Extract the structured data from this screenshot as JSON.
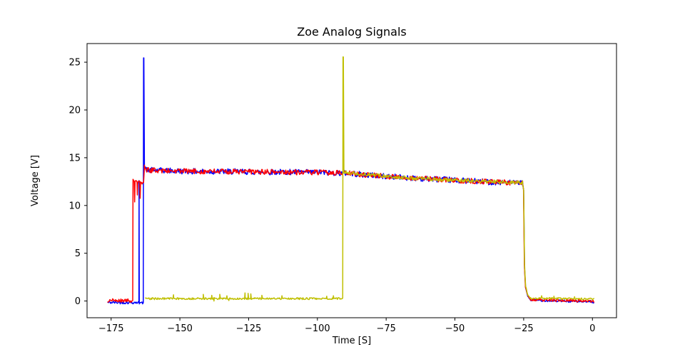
{
  "page": {
    "background": "#ffffff"
  },
  "chart_data": {
    "type": "line",
    "title": "Zoe Analog Signals",
    "xlabel": "Time [S]",
    "ylabel": "Voltage [V]",
    "xlim": [
      -183.75,
      8.75
    ],
    "ylim": [
      -1.75,
      26.95
    ],
    "grid": false,
    "legend": "none",
    "axis_color": "#000000",
    "xticks": [
      {
        "value": -175,
        "label": "−175"
      },
      {
        "value": -150,
        "label": "−150"
      },
      {
        "value": -125,
        "label": "−125"
      },
      {
        "value": -100,
        "label": "−100"
      },
      {
        "value": -75,
        "label": "−75"
      },
      {
        "value": -50,
        "label": "−50"
      },
      {
        "value": -25,
        "label": "−25"
      },
      {
        "value": 0,
        "label": "0"
      }
    ],
    "yticks": [
      {
        "value": 0,
        "label": "0"
      },
      {
        "value": 5,
        "label": "5"
      },
      {
        "value": 10,
        "label": "10"
      },
      {
        "value": 15,
        "label": "15"
      },
      {
        "value": 20,
        "label": "20"
      },
      {
        "value": 25,
        "label": "25"
      }
    ],
    "sample_step": 0.25,
    "noise_seed": 42,
    "series": [
      {
        "name": "blue",
        "color": "#0000ff",
        "linewidth": 1.5,
        "segments": [
          [
            -176.2,
            -0.15,
            -164.9,
            -0.15,
            0.15
          ],
          [
            -164.9,
            -0.15,
            -164.85,
            12.6,
            0
          ],
          [
            -164.85,
            12.6,
            -164.75,
            -0.2,
            0
          ],
          [
            -164.75,
            -0.2,
            -163.3,
            -0.2,
            0.12
          ],
          [
            -163.3,
            -0.2,
            -163.2,
            25.45,
            0
          ],
          [
            -163.2,
            25.45,
            -163.1,
            25.45,
            0
          ],
          [
            -163.1,
            25.45,
            -162.9,
            14.0,
            0
          ],
          [
            -162.9,
            14.0,
            -162.0,
            13.7,
            0.2
          ],
          [
            -162.0,
            13.7,
            -150,
            13.6,
            0.3
          ],
          [
            -150,
            13.6,
            -140,
            13.55,
            0.3
          ],
          [
            -140,
            13.55,
            -130,
            13.55,
            0.3
          ],
          [
            -130,
            13.55,
            -120,
            13.5,
            0.3
          ],
          [
            -120,
            13.5,
            -110,
            13.5,
            0.3
          ],
          [
            -110,
            13.5,
            -100,
            13.45,
            0.3
          ],
          [
            -100,
            13.45,
            -90,
            13.4,
            0.3
          ],
          [
            -90,
            13.4,
            -80,
            13.15,
            0.3
          ],
          [
            -80,
            13.15,
            -70,
            12.95,
            0.3
          ],
          [
            -70,
            12.95,
            -60,
            12.8,
            0.3
          ],
          [
            -60,
            12.8,
            -50,
            12.65,
            0.3
          ],
          [
            -50,
            12.65,
            -40,
            12.5,
            0.3
          ],
          [
            -40,
            12.5,
            -30,
            12.4,
            0.3
          ],
          [
            -30,
            12.4,
            -25.4,
            12.35,
            0.25
          ],
          [
            -25.4,
            12.35,
            -25.0,
            11.5,
            0.1
          ],
          [
            -25.0,
            11.5,
            -24.7,
            3.5,
            0.1
          ],
          [
            -24.7,
            3.5,
            -24.3,
            1.4,
            0.08
          ],
          [
            -24.3,
            1.4,
            -23.5,
            0.5,
            0.06
          ],
          [
            -23.5,
            0.5,
            -22.5,
            0.1,
            0.05
          ],
          [
            -22.5,
            0.1,
            0.5,
            -0.1,
            0.12
          ]
        ],
        "spikes": []
      },
      {
        "name": "red",
        "color": "#ff0000",
        "linewidth": 1.5,
        "segments": [
          [
            -176.2,
            0.05,
            -167.15,
            0.05,
            0.18
          ],
          [
            -167.15,
            0.05,
            -167.05,
            12.6,
            0
          ],
          [
            -167.05,
            12.6,
            -166.6,
            12.5,
            0.15
          ],
          [
            -166.6,
            12.5,
            -166.45,
            10.4,
            0.05
          ],
          [
            -166.45,
            10.4,
            -166.3,
            12.45,
            0.05
          ],
          [
            -166.3,
            12.45,
            -165.6,
            12.5,
            0.15
          ],
          [
            -165.6,
            12.5,
            -165.45,
            11.1,
            0.05
          ],
          [
            -165.45,
            11.1,
            -165.3,
            12.45,
            0.05
          ],
          [
            -165.3,
            12.45,
            -164.6,
            12.4,
            0.15
          ],
          [
            -164.6,
            12.4,
            -164.45,
            10.8,
            0.05
          ],
          [
            -164.45,
            10.8,
            -164.3,
            12.4,
            0.05
          ],
          [
            -164.3,
            12.4,
            -163.2,
            12.35,
            0.15
          ],
          [
            -163.2,
            12.35,
            -162.9,
            14.05,
            0.1
          ],
          [
            -162.9,
            14.05,
            -162.0,
            13.7,
            0.25
          ],
          [
            -162.0,
            13.7,
            -150,
            13.6,
            0.28
          ],
          [
            -150,
            13.6,
            -140,
            13.55,
            0.28
          ],
          [
            -140,
            13.55,
            -130,
            13.55,
            0.28
          ],
          [
            -130,
            13.55,
            -120,
            13.5,
            0.28
          ],
          [
            -120,
            13.5,
            -110,
            13.5,
            0.28
          ],
          [
            -110,
            13.5,
            -100,
            13.45,
            0.28
          ],
          [
            -100,
            13.45,
            -90,
            13.4,
            0.28
          ],
          [
            -90,
            13.4,
            -80,
            13.15,
            0.28
          ],
          [
            -80,
            13.15,
            -70,
            12.95,
            0.28
          ],
          [
            -70,
            12.95,
            -60,
            12.8,
            0.28
          ],
          [
            -60,
            12.8,
            -50,
            12.65,
            0.28
          ],
          [
            -50,
            12.65,
            -40,
            12.5,
            0.28
          ],
          [
            -40,
            12.5,
            -30,
            12.4,
            0.28
          ],
          [
            -30,
            12.4,
            -25.4,
            12.35,
            0.22
          ],
          [
            -25.4,
            12.35,
            -25.05,
            11.6,
            0.1
          ],
          [
            -25.05,
            11.6,
            -24.75,
            3.8,
            0.1
          ],
          [
            -24.75,
            3.8,
            -24.35,
            1.5,
            0.08
          ],
          [
            -24.35,
            1.5,
            -23.5,
            0.55,
            0.06
          ],
          [
            -23.5,
            0.55,
            -22.5,
            0.15,
            0.05
          ],
          [
            -22.5,
            0.15,
            0.5,
            0.0,
            0.15
          ]
        ],
        "spikes": []
      },
      {
        "name": "yellow",
        "color": "#bfbf00",
        "linewidth": 1.5,
        "segments": [
          [
            -162.5,
            0.25,
            -91.0,
            0.25,
            0.1
          ],
          [
            -91.0,
            0.25,
            -90.8,
            0.3,
            0.05
          ],
          [
            -90.8,
            0.3,
            -90.7,
            25.55,
            0
          ],
          [
            -90.7,
            25.55,
            -90.55,
            25.55,
            0
          ],
          [
            -90.55,
            25.55,
            -90.35,
            13.5,
            0
          ],
          [
            -90.35,
            13.5,
            -85,
            13.3,
            0.18
          ],
          [
            -85,
            13.3,
            -80,
            13.2,
            0.18
          ],
          [
            -80,
            13.2,
            -75,
            13.05,
            0.18
          ],
          [
            -75,
            13.05,
            -70,
            12.95,
            0.18
          ],
          [
            -70,
            12.95,
            -65,
            12.85,
            0.18
          ],
          [
            -65,
            12.85,
            -60,
            12.8,
            0.18
          ],
          [
            -60,
            12.8,
            -55,
            12.7,
            0.18
          ],
          [
            -55,
            12.7,
            -50,
            12.65,
            0.18
          ],
          [
            -50,
            12.65,
            -45,
            12.6,
            0.18
          ],
          [
            -45,
            12.6,
            -40,
            12.5,
            0.18
          ],
          [
            -40,
            12.5,
            -35,
            12.5,
            0.18
          ],
          [
            -35,
            12.5,
            -30,
            12.45,
            0.18
          ],
          [
            -30,
            12.45,
            -25.4,
            12.4,
            0.18
          ],
          [
            -25.4,
            12.4,
            -25.0,
            11.6,
            0.1
          ],
          [
            -25.0,
            11.6,
            -24.7,
            3.9,
            0.1
          ],
          [
            -24.7,
            3.9,
            -24.3,
            1.6,
            0.08
          ],
          [
            -24.3,
            1.6,
            -23.5,
            0.6,
            0.06
          ],
          [
            -23.5,
            0.6,
            -22.6,
            0.3,
            0.05
          ],
          [
            -22.6,
            0.3,
            0.5,
            0.2,
            0.1
          ]
        ],
        "spikes": [
          [
            -152.3,
            0.65
          ],
          [
            -141.5,
            0.7
          ],
          [
            -138.4,
            0.6
          ],
          [
            -137.6,
            0.0
          ],
          [
            -135.5,
            0.7
          ],
          [
            -132.9,
            0.55
          ],
          [
            -132.2,
            0.05
          ],
          [
            -126.3,
            0.85
          ],
          [
            -125.2,
            0.8
          ],
          [
            -124.2,
            0.75
          ],
          [
            -120.2,
            0.6
          ],
          [
            -112.9,
            0.55
          ],
          [
            -96.6,
            0.5
          ],
          [
            -94.2,
            0.55
          ],
          [
            -18.5,
            0.55
          ],
          [
            -14.0,
            0.5
          ],
          [
            -6.5,
            0.45
          ]
        ]
      }
    ]
  }
}
